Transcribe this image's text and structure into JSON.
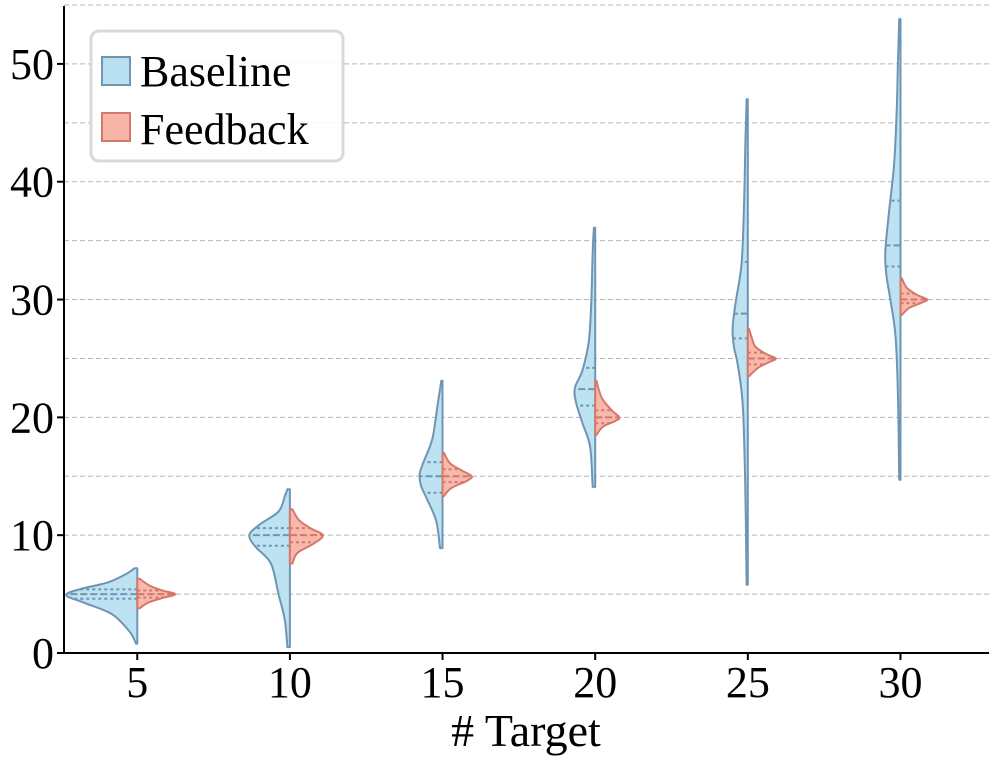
{
  "chart_data": {
    "type": "violin",
    "xlabel": "# Target",
    "ylabel": "",
    "categories": [
      "5",
      "10",
      "15",
      "20",
      "25",
      "30"
    ],
    "x_positions": [
      5,
      10,
      15,
      20,
      25,
      30
    ],
    "y_ticks": [
      0,
      10,
      20,
      30,
      40,
      50
    ],
    "ylim": [
      0,
      55
    ],
    "grid": "horizontal dashed, every 5",
    "legend": "top-left",
    "colors": {
      "baseline_fill": "#b9e0f0",
      "baseline_edge": "#6f94b4",
      "feedback_fill": "#f7b5a8",
      "feedback_edge": "#d5786a"
    },
    "series": [
      {
        "name": "Baseline",
        "side": "left",
        "groups": [
          {
            "x": 5,
            "min": 0.8,
            "max": 7.2,
            "q1": 4.6,
            "median": 5.0,
            "q3": 5.4,
            "profile": [
              [
                0.8,
                0.1
              ],
              [
                1.8,
                0.6
              ],
              [
                3.3,
                2.0
              ],
              [
                4.3,
                4.3
              ],
              [
                4.9,
                5.6
              ],
              [
                5.4,
                4.6
              ],
              [
                6.0,
                2.3
              ],
              [
                6.7,
                0.9
              ],
              [
                7.2,
                0.2
              ]
            ]
          },
          {
            "x": 10,
            "min": 0.5,
            "max": 13.9,
            "q1": 9.1,
            "median": 10.0,
            "q3": 10.6,
            "profile": [
              [
                0.5,
                0.2
              ],
              [
                2.8,
                0.4
              ],
              [
                5.0,
                0.9
              ],
              [
                7.6,
                1.5
              ],
              [
                9.0,
                2.7
              ],
              [
                10.0,
                3.2
              ],
              [
                10.9,
                2.4
              ],
              [
                12.0,
                0.9
              ],
              [
                13.3,
                0.4
              ],
              [
                13.9,
                0.2
              ]
            ]
          },
          {
            "x": 15,
            "min": 8.9,
            "max": 23.1,
            "q1": 13.6,
            "median": 15.0,
            "q3": 16.2,
            "profile": [
              [
                8.9,
                0.2
              ],
              [
                11.2,
                0.5
              ],
              [
                13.0,
                1.2
              ],
              [
                14.2,
                1.7
              ],
              [
                15.2,
                1.8
              ],
              [
                16.2,
                1.5
              ],
              [
                18.2,
                0.8
              ],
              [
                21.0,
                0.4
              ],
              [
                23.1,
                0.1
              ]
            ]
          },
          {
            "x": 20,
            "min": 14.1,
            "max": 36.1,
            "q1": 21.0,
            "median": 22.4,
            "q3": 24.2,
            "profile": [
              [
                14.1,
                0.2
              ],
              [
                17.5,
                0.4
              ],
              [
                19.5,
                1.0
              ],
              [
                21.2,
                1.5
              ],
              [
                22.5,
                1.6
              ],
              [
                24.0,
                1.0
              ],
              [
                26.5,
                0.5
              ],
              [
                30.0,
                0.3
              ],
              [
                34.0,
                0.2
              ],
              [
                36.1,
                0.1
              ]
            ]
          },
          {
            "x": 25,
            "min": 5.8,
            "max": 47.0,
            "q1": 26.7,
            "median": 28.8,
            "q3": 33.2,
            "profile": [
              [
                5.8,
                0.1
              ],
              [
                14.0,
                0.2
              ],
              [
                21.0,
                0.4
              ],
              [
                24.5,
                0.8
              ],
              [
                26.0,
                1.1
              ],
              [
                27.5,
                1.2
              ],
              [
                29.5,
                1.0
              ],
              [
                33.0,
                0.5
              ],
              [
                38.0,
                0.3
              ],
              [
                43.0,
                0.2
              ],
              [
                47.0,
                0.1
              ]
            ]
          },
          {
            "x": 30,
            "min": 14.7,
            "max": 53.8,
            "q1": 32.8,
            "median": 34.6,
            "q3": 38.4,
            "profile": [
              [
                14.7,
                0.1
              ],
              [
                22.0,
                0.2
              ],
              [
                27.0,
                0.4
              ],
              [
                30.0,
                0.8
              ],
              [
                32.0,
                1.1
              ],
              [
                34.0,
                1.2
              ],
              [
                37.5,
                0.9
              ],
              [
                41.5,
                0.5
              ],
              [
                46.0,
                0.3
              ],
              [
                50.0,
                0.2
              ],
              [
                53.8,
                0.1
              ]
            ]
          }
        ]
      },
      {
        "name": "Feedback",
        "side": "right",
        "groups": [
          {
            "x": 5,
            "min": 3.8,
            "max": 6.3,
            "q1": 4.7,
            "median": 5.0,
            "q3": 5.3,
            "profile": [
              [
                3.8,
                0.2
              ],
              [
                4.3,
                0.9
              ],
              [
                4.7,
                2.1
              ],
              [
                5.0,
                3.0
              ],
              [
                5.3,
                2.0
              ],
              [
                5.7,
                1.0
              ],
              [
                6.3,
                0.2
              ]
            ]
          },
          {
            "x": 10,
            "min": 7.6,
            "max": 12.2,
            "q1": 9.4,
            "median": 10.0,
            "q3": 10.6,
            "profile": [
              [
                7.6,
                0.2
              ],
              [
                8.5,
                0.6
              ],
              [
                9.3,
                1.9
              ],
              [
                10.0,
                2.6
              ],
              [
                10.6,
                1.6
              ],
              [
                11.3,
                0.7
              ],
              [
                12.2,
                0.2
              ]
            ]
          },
          {
            "x": 15,
            "min": 13.3,
            "max": 17.0,
            "q1": 14.5,
            "median": 15.0,
            "q3": 15.6,
            "profile": [
              [
                13.3,
                0.1
              ],
              [
                14.0,
                0.7
              ],
              [
                14.6,
                1.9
              ],
              [
                15.0,
                2.3
              ],
              [
                15.5,
                1.5
              ],
              [
                16.1,
                0.6
              ],
              [
                17.0,
                0.1
              ]
            ]
          },
          {
            "x": 20,
            "min": 18.5,
            "max": 23.1,
            "q1": 19.5,
            "median": 20.0,
            "q3": 20.6,
            "profile": [
              [
                18.5,
                0.1
              ],
              [
                19.2,
                0.6
              ],
              [
                19.7,
                1.6
              ],
              [
                20.0,
                1.9
              ],
              [
                20.6,
                1.3
              ],
              [
                21.5,
                0.6
              ],
              [
                22.3,
                0.3
              ],
              [
                23.1,
                0.1
              ]
            ]
          },
          {
            "x": 25,
            "min": 23.5,
            "max": 27.5,
            "q1": 24.5,
            "median": 25.0,
            "q3": 25.5,
            "profile": [
              [
                23.5,
                0.1
              ],
              [
                24.2,
                0.8
              ],
              [
                24.7,
                1.7
              ],
              [
                25.0,
                2.2
              ],
              [
                25.4,
                1.4
              ],
              [
                26.0,
                0.6
              ],
              [
                26.8,
                0.3
              ],
              [
                27.5,
                0.1
              ]
            ]
          },
          {
            "x": 30,
            "min": 28.7,
            "max": 31.8,
            "q1": 29.7,
            "median": 30.0,
            "q3": 30.5,
            "profile": [
              [
                28.7,
                0.1
              ],
              [
                29.3,
                0.7
              ],
              [
                29.7,
                1.6
              ],
              [
                30.0,
                2.1
              ],
              [
                30.4,
                1.3
              ],
              [
                31.0,
                0.5
              ],
              [
                31.8,
                0.1
              ]
            ]
          }
        ]
      }
    ]
  }
}
